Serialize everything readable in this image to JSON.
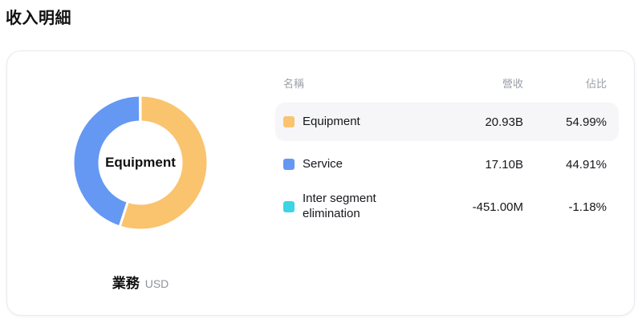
{
  "page": {
    "title": "收入明細"
  },
  "chart_caption": {
    "dimension": "業務",
    "unit": "USD"
  },
  "table": {
    "columns": [
      "名稱",
      "營收",
      "佔比"
    ],
    "rows": [
      {
        "name": "Equipment",
        "revenue": "20.93B",
        "pct": "54.99%",
        "color": "#FAC36E"
      },
      {
        "name": "Service",
        "revenue": "17.10B",
        "pct": "44.91%",
        "color": "#6598F2"
      },
      {
        "name": "Inter segment elimination",
        "revenue": "-451.00M",
        "pct": "-1.18%",
        "color": "#3DD4E4"
      }
    ]
  },
  "chart_data": {
    "type": "pie",
    "title": "收入明細",
    "center_label": "Equipment",
    "dimension_label": "業務",
    "currency": "USD",
    "start_angle_deg": 0,
    "inner_radius_ratio": 0.61,
    "legend_position": "table-right",
    "segments": [
      {
        "label": "Equipment",
        "revenue_text": "20.93B",
        "revenue_usd_billions": 20.93,
        "pct": 54.99,
        "color": "#FAC36E"
      },
      {
        "label": "Service",
        "revenue_text": "17.10B",
        "revenue_usd_billions": 17.1,
        "pct": 44.91,
        "color": "#6598F2"
      },
      {
        "label": "Inter segment elimination",
        "revenue_text": "-451.00M",
        "revenue_usd_billions": -0.451,
        "pct": -1.18,
        "color": "#3DD4E4"
      }
    ]
  }
}
